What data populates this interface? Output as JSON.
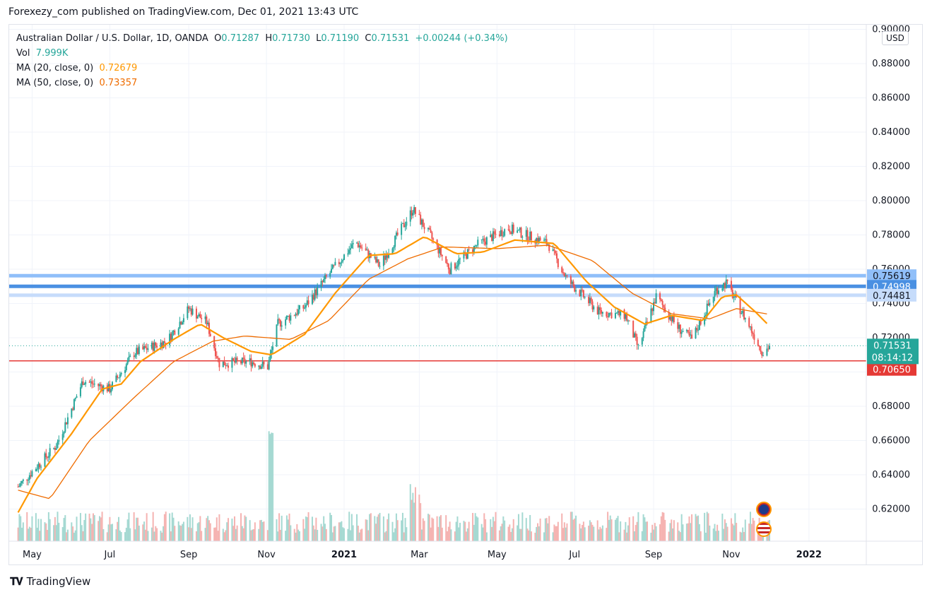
{
  "publisher_line": "Forexezy_com published on TradingView.com, Dec 01, 2021 13:43 UTC",
  "legend": {
    "symbol": "Australian Dollar / U.S. Dollar, 1D, OANDA",
    "o_label": "O",
    "o_value": "0.71287",
    "h_label": "H",
    "h_value": "0.71730",
    "l_label": "L",
    "l_value": "0.71190",
    "c_label": "C",
    "c_value": "0.71531",
    "change": "+0.00244 (+0.34%)",
    "vol_label": "Vol",
    "vol_value": "7.999K",
    "ma20_label": "MA (20, close, 0)",
    "ma20_value": "0.72679",
    "ma50_label": "MA (50, close, 0)",
    "ma50_value": "0.73357"
  },
  "currency_badge": "USD",
  "footer_brand": "TradingView",
  "colors": {
    "up": "#26a69a",
    "down": "#ef5350",
    "ma20": "#ff9800",
    "ma50": "#ef6c00",
    "level_light": "#90bff9",
    "level_dark": "#2962ff",
    "support": "#e53935",
    "price_badge": "#26a69a",
    "grid": "#f0f3fa",
    "axis_text": "#131722"
  },
  "icons": [
    "australia-flag-icon",
    "usa-flag-icon",
    "tradingview-logo-icon"
  ],
  "chart_data": {
    "type": "candlestick",
    "title": "Australian Dollar / U.S. Dollar, 1D, OANDA",
    "x_ticks": [
      "May",
      "Jul",
      "Sep",
      "Nov",
      "2021",
      "Mar",
      "May",
      "Jul",
      "Sep",
      "Nov",
      "2022"
    ],
    "y_ticks": [
      "0.90000",
      "0.88000",
      "0.86000",
      "0.84000",
      "0.82000",
      "0.80000",
      "0.78000",
      "0.76000",
      "0.74000",
      "0.72000",
      "0.70000",
      "0.68000",
      "0.66000",
      "0.64000",
      "0.62000"
    ],
    "ylim": [
      0.6,
      0.9
    ],
    "grid": true,
    "price_path_key_points": [
      {
        "date": "2020-04-20",
        "close": 0.633
      },
      {
        "date": "2020-05-20",
        "close": 0.657
      },
      {
        "date": "2020-06-10",
        "close": 0.695
      },
      {
        "date": "2020-07-01",
        "close": 0.69
      },
      {
        "date": "2020-07-20",
        "close": 0.711
      },
      {
        "date": "2020-08-15",
        "close": 0.718
      },
      {
        "date": "2020-09-01",
        "close": 0.737
      },
      {
        "date": "2020-09-15",
        "close": 0.729
      },
      {
        "date": "2020-09-25",
        "close": 0.705
      },
      {
        "date": "2020-10-20",
        "close": 0.706
      },
      {
        "date": "2020-11-02",
        "close": 0.703
      },
      {
        "date": "2020-11-10",
        "close": 0.728
      },
      {
        "date": "2020-12-01",
        "close": 0.738
      },
      {
        "date": "2020-12-20",
        "close": 0.757
      },
      {
        "date": "2021-01-10",
        "close": 0.776
      },
      {
        "date": "2021-01-29",
        "close": 0.762
      },
      {
        "date": "2021-02-24",
        "close": 0.795
      },
      {
        "date": "2021-03-10",
        "close": 0.779
      },
      {
        "date": "2021-03-25",
        "close": 0.76
      },
      {
        "date": "2021-04-15",
        "close": 0.774
      },
      {
        "date": "2021-05-10",
        "close": 0.784
      },
      {
        "date": "2021-06-10",
        "close": 0.775
      },
      {
        "date": "2021-06-25",
        "close": 0.754
      },
      {
        "date": "2021-07-20",
        "close": 0.735
      },
      {
        "date": "2021-08-10",
        "close": 0.733
      },
      {
        "date": "2021-08-20",
        "close": 0.714
      },
      {
        "date": "2021-09-03",
        "close": 0.744
      },
      {
        "date": "2021-09-20",
        "close": 0.726
      },
      {
        "date": "2021-10-01",
        "close": 0.719
      },
      {
        "date": "2021-10-20",
        "close": 0.748
      },
      {
        "date": "2021-10-28",
        "close": 0.752
      },
      {
        "date": "2021-11-15",
        "close": 0.727
      },
      {
        "date": "2021-11-26",
        "close": 0.711
      },
      {
        "date": "2021-12-01",
        "close": 0.7153
      }
    ],
    "ma20_key_points": [
      {
        "date": "2020-04-20",
        "value": 0.618
      },
      {
        "date": "2020-05-05",
        "value": 0.638
      },
      {
        "date": "2020-06-01",
        "value": 0.664
      },
      {
        "date": "2020-06-25",
        "value": 0.69
      },
      {
        "date": "2020-07-10",
        "value": 0.693
      },
      {
        "date": "2020-07-25",
        "value": 0.706
      },
      {
        "date": "2020-08-20",
        "value": 0.719
      },
      {
        "date": "2020-09-10",
        "value": 0.728
      },
      {
        "date": "2020-09-28",
        "value": 0.72
      },
      {
        "date": "2020-10-20",
        "value": 0.712
      },
      {
        "date": "2020-11-05",
        "value": 0.71
      },
      {
        "date": "2020-12-01",
        "value": 0.722
      },
      {
        "date": "2020-12-25",
        "value": 0.746
      },
      {
        "date": "2021-01-20",
        "value": 0.768
      },
      {
        "date": "2021-02-10",
        "value": 0.769
      },
      {
        "date": "2021-03-05",
        "value": 0.779
      },
      {
        "date": "2021-03-30",
        "value": 0.769
      },
      {
        "date": "2021-04-20",
        "value": 0.77
      },
      {
        "date": "2021-05-15",
        "value": 0.777
      },
      {
        "date": "2021-06-15",
        "value": 0.775
      },
      {
        "date": "2021-07-10",
        "value": 0.753
      },
      {
        "date": "2021-08-01",
        "value": 0.738
      },
      {
        "date": "2021-08-25",
        "value": 0.728
      },
      {
        "date": "2021-09-15",
        "value": 0.733
      },
      {
        "date": "2021-10-10",
        "value": 0.73
      },
      {
        "date": "2021-10-25",
        "value": 0.744
      },
      {
        "date": "2021-11-05",
        "value": 0.745
      },
      {
        "date": "2021-11-20",
        "value": 0.735
      },
      {
        "date": "2021-12-01",
        "value": 0.7268
      }
    ],
    "ma50_key_points": [
      {
        "date": "2020-04-20",
        "value": 0.631
      },
      {
        "date": "2020-05-15",
        "value": 0.626
      },
      {
        "date": "2020-06-15",
        "value": 0.66
      },
      {
        "date": "2020-07-20",
        "value": 0.685
      },
      {
        "date": "2020-08-20",
        "value": 0.706
      },
      {
        "date": "2020-09-20",
        "value": 0.718
      },
      {
        "date": "2020-10-15",
        "value": 0.721
      },
      {
        "date": "2020-11-20",
        "value": 0.719
      },
      {
        "date": "2020-12-20",
        "value": 0.73
      },
      {
        "date": "2021-01-20",
        "value": 0.754
      },
      {
        "date": "2021-02-20",
        "value": 0.766
      },
      {
        "date": "2021-03-20",
        "value": 0.773
      },
      {
        "date": "2021-05-01",
        "value": 0.772
      },
      {
        "date": "2021-06-10",
        "value": 0.774
      },
      {
        "date": "2021-07-15",
        "value": 0.765
      },
      {
        "date": "2021-08-15",
        "value": 0.746
      },
      {
        "date": "2021-09-15",
        "value": 0.734
      },
      {
        "date": "2021-10-15",
        "value": 0.731
      },
      {
        "date": "2021-11-05",
        "value": 0.737
      },
      {
        "date": "2021-12-01",
        "value": 0.7336
      }
    ],
    "horizontal_levels": [
      {
        "value": 0.75619,
        "label": "0.75619",
        "style": "light"
      },
      {
        "value": 0.74998,
        "label": "0.74998",
        "style": "dark"
      },
      {
        "value": 0.74481,
        "label": "0.74481",
        "style": "light"
      },
      {
        "value": 0.7065,
        "label": "0.70650",
        "style": "support"
      }
    ],
    "last_price": {
      "value": 0.71531,
      "label": "0.71531",
      "countdown": "08:14:12"
    },
    "volume_axis": "volume bars at bottom, peak near Nov 2020"
  }
}
